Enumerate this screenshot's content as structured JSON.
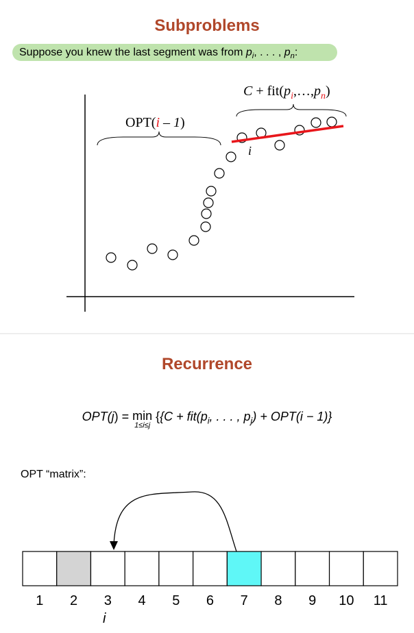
{
  "title": "Subproblems",
  "intro": [
    "Suppose you knew the last segment was from ",
    "p",
    "i",
    ", . . . , ",
    "p",
    "n",
    ":"
  ],
  "plot": {
    "fit_label": [
      "C",
      " + fit(",
      "p",
      "i",
      ",…,",
      "p",
      "n",
      ")"
    ],
    "opt_label": [
      "OPT(",
      "i",
      " – ",
      "1",
      ")"
    ],
    "point_label": "i"
  },
  "section": "Recurrence",
  "formula": [
    "OPT(",
    "j",
    ") = ",
    "min",
    "1≤i≤j",
    "{C + fit(",
    "p",
    "i",
    ", . . . , ",
    "p",
    "j",
    ") + OPT(",
    "i",
    " − 1)}"
  ],
  "matrix_label": "OPT “matrix”:",
  "matrix": {
    "indices": [
      1,
      2,
      3,
      4,
      5,
      6,
      7,
      8,
      9,
      10,
      11
    ],
    "pointer_label": "i"
  }
}
